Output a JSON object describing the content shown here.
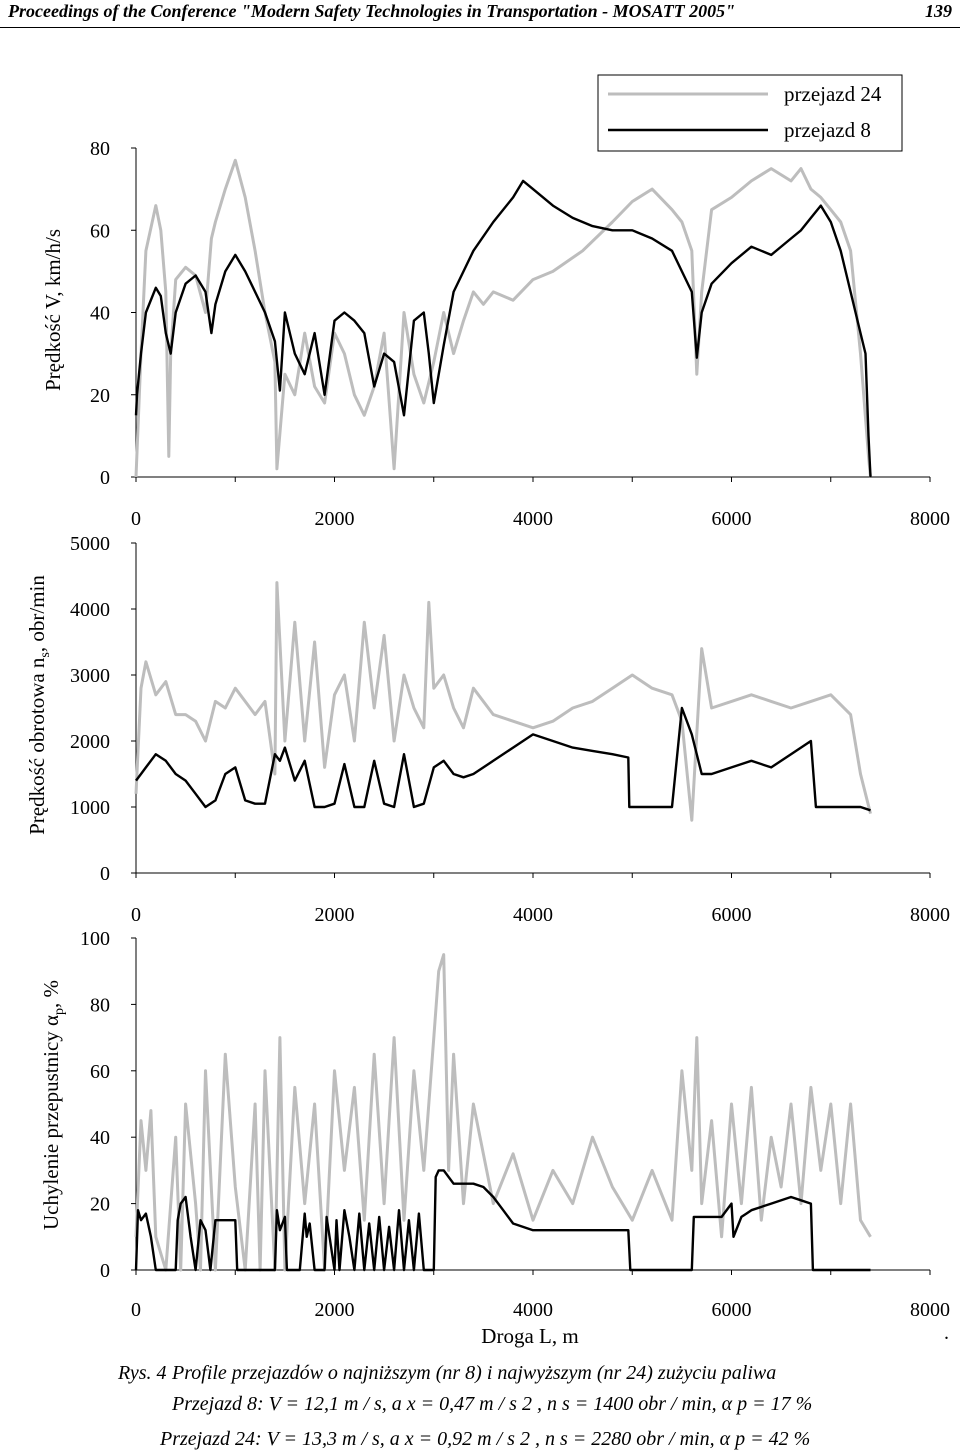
{
  "header": {
    "title": "Proceedings of the Conference \"Modern Safety Technologies in Transportation - MOSATT 2005\"",
    "page_number": "139"
  },
  "chart_data": [
    {
      "type": "line",
      "ylabel": "Prędkość V, km/h/s",
      "xlim": [
        0,
        8000
      ],
      "ylim": [
        0,
        80
      ],
      "xticks": [
        "0",
        "2000",
        "4000",
        "6000",
        "8000"
      ],
      "yticks": [
        "0",
        "20",
        "40",
        "60",
        "80"
      ],
      "legend": {
        "placement": "top-right",
        "entries": [
          "przejazd 24",
          "przejazd 8"
        ]
      },
      "series": [
        {
          "name": "przejazd 24",
          "color": "#bdbdbd",
          "x": [
            0,
            50,
            100,
            200,
            250,
            300,
            330,
            350,
            400,
            500,
            600,
            700,
            760,
            800,
            900,
            1000,
            1100,
            1200,
            1300,
            1400,
            1420,
            1500,
            1600,
            1700,
            1800,
            1900,
            2000,
            2100,
            2200,
            2300,
            2400,
            2500,
            2600,
            2700,
            2800,
            2900,
            3000,
            3100,
            3200,
            3300,
            3400,
            3500,
            3600,
            3800,
            4000,
            4200,
            4500,
            4800,
            5000,
            5200,
            5400,
            5500,
            5600,
            5650,
            5700,
            5800,
            6000,
            6200,
            6400,
            6600,
            6700,
            6800,
            6900,
            7000,
            7100,
            7200,
            7300,
            7380,
            7400
          ],
          "y": [
            0,
            30,
            55,
            66,
            60,
            45,
            5,
            30,
            48,
            51,
            49,
            40,
            58,
            62,
            70,
            77,
            68,
            55,
            40,
            28,
            2,
            25,
            20,
            35,
            22,
            18,
            35,
            30,
            20,
            15,
            22,
            35,
            2,
            40,
            25,
            18,
            28,
            40,
            30,
            38,
            45,
            42,
            45,
            43,
            48,
            50,
            55,
            62,
            67,
            70,
            65,
            62,
            55,
            25,
            45,
            65,
            68,
            72,
            75,
            72,
            75,
            70,
            68,
            65,
            62,
            55,
            30,
            5,
            0
          ]
        },
        {
          "name": "przejazd 8",
          "color": "#000000",
          "x": [
            0,
            10,
            50,
            100,
            200,
            250,
            300,
            350,
            400,
            500,
            600,
            700,
            760,
            800,
            900,
            1000,
            1100,
            1200,
            1300,
            1400,
            1450,
            1500,
            1600,
            1700,
            1800,
            1900,
            2000,
            2100,
            2200,
            2300,
            2400,
            2500,
            2600,
            2700,
            2800,
            2900,
            2950,
            3000,
            3100,
            3200,
            3400,
            3600,
            3800,
            3900,
            4000,
            4200,
            4400,
            4600,
            4800,
            5000,
            5200,
            5400,
            5500,
            5600,
            5650,
            5700,
            5800,
            6000,
            6200,
            6400,
            6600,
            6700,
            6800,
            6900,
            7000,
            7100,
            7200,
            7300,
            7350,
            7380,
            7400
          ],
          "y": [
            15,
            20,
            30,
            40,
            46,
            44,
            35,
            30,
            40,
            47,
            49,
            45,
            35,
            42,
            50,
            54,
            50,
            45,
            40,
            33,
            21,
            40,
            30,
            25,
            35,
            20,
            38,
            40,
            38,
            35,
            22,
            30,
            28,
            15,
            38,
            40,
            30,
            18,
            32,
            45,
            55,
            62,
            68,
            72,
            70,
            66,
            63,
            61,
            60,
            60,
            58,
            55,
            50,
            45,
            29,
            40,
            47,
            52,
            56,
            54,
            58,
            60,
            63,
            66,
            62,
            55,
            45,
            35,
            30,
            10,
            0
          ]
        }
      ]
    },
    {
      "type": "line",
      "ylabel": "Prędkość obrotowa n",
      "ylabel_sub": "s",
      "ylabel_tail": ", obr/min",
      "xlim": [
        0,
        8000
      ],
      "ylim": [
        0,
        5000
      ],
      "xticks": [
        "0",
        "2000",
        "4000",
        "6000",
        "8000"
      ],
      "yticks": [
        "0",
        "1000",
        "2000",
        "3000",
        "4000",
        "5000"
      ],
      "series": [
        {
          "name": "przejazd 24",
          "color": "#bdbdbd",
          "x": [
            0,
            50,
            100,
            200,
            300,
            400,
            500,
            600,
            700,
            800,
            900,
            1000,
            1100,
            1200,
            1300,
            1400,
            1420,
            1500,
            1600,
            1700,
            1800,
            1900,
            2000,
            2100,
            2200,
            2300,
            2400,
            2500,
            2600,
            2700,
            2800,
            2900,
            2950,
            3000,
            3100,
            3200,
            3300,
            3400,
            3600,
            3800,
            4000,
            4200,
            4400,
            4600,
            4800,
            5000,
            5200,
            5400,
            5500,
            5600,
            5700,
            5800,
            6000,
            6200,
            6400,
            6600,
            6800,
            7000,
            7200,
            7300,
            7400
          ],
          "y": [
            1200,
            2800,
            3200,
            2700,
            2900,
            2400,
            2400,
            2300,
            2000,
            2600,
            2500,
            2800,
            2600,
            2400,
            2600,
            1500,
            4400,
            2000,
            3800,
            2000,
            3500,
            1600,
            2700,
            3000,
            2000,
            3800,
            2500,
            3600,
            2000,
            3000,
            2500,
            2200,
            4100,
            2800,
            3000,
            2500,
            2200,
            2800,
            2400,
            2300,
            2200,
            2300,
            2500,
            2600,
            2800,
            3000,
            2800,
            2700,
            2300,
            800,
            3400,
            2500,
            2600,
            2700,
            2600,
            2500,
            2600,
            2700,
            2400,
            1500,
            900
          ]
        },
        {
          "name": "przejazd 8",
          "color": "#000000",
          "x": [
            0,
            50,
            100,
            200,
            300,
            400,
            500,
            600,
            700,
            800,
            900,
            1000,
            1100,
            1200,
            1300,
            1400,
            1450,
            1500,
            1600,
            1700,
            1800,
            1900,
            2000,
            2100,
            2200,
            2300,
            2400,
            2500,
            2600,
            2700,
            2800,
            2900,
            3000,
            3100,
            3200,
            3300,
            3400,
            3600,
            3800,
            4000,
            4200,
            4400,
            4600,
            4800,
            4960,
            4970,
            5000,
            5200,
            5400,
            5500,
            5600,
            5700,
            5800,
            6000,
            6200,
            6400,
            6600,
            6800,
            6850,
            6860,
            7000,
            7200,
            7300,
            7400
          ],
          "y": [
            1400,
            1500,
            1600,
            1800,
            1700,
            1500,
            1400,
            1200,
            1000,
            1100,
            1500,
            1600,
            1100,
            1050,
            1050,
            1800,
            1700,
            1900,
            1400,
            1700,
            1000,
            1000,
            1050,
            1650,
            1000,
            1000,
            1700,
            1050,
            1000,
            1800,
            1000,
            1050,
            1600,
            1700,
            1500,
            1450,
            1500,
            1700,
            1900,
            2100,
            2000,
            1900,
            1850,
            1800,
            1750,
            1000,
            1000,
            1000,
            1000,
            2500,
            2100,
            1500,
            1500,
            1600,
            1700,
            1600,
            1800,
            2000,
            1000,
            1000,
            1000,
            1000,
            1000,
            950
          ]
        }
      ]
    },
    {
      "type": "line",
      "ylabel": "Uchylenie przepustnicy α",
      "ylabel_sub": "p",
      "ylabel_tail": ", %",
      "xlabel": "Droga L, m",
      "xlim": [
        0,
        8000
      ],
      "ylim": [
        0,
        100
      ],
      "xticks": [
        "0",
        "2000",
        "4000",
        "6000",
        "8000"
      ],
      "yticks": [
        "0",
        "20",
        "40",
        "60",
        "80",
        "100"
      ],
      "series": [
        {
          "name": "przejazd 24",
          "color": "#bdbdbd",
          "x": [
            0,
            50,
            100,
            150,
            200,
            300,
            400,
            450,
            500,
            600,
            650,
            700,
            800,
            900,
            1000,
            1100,
            1200,
            1250,
            1300,
            1400,
            1450,
            1500,
            1600,
            1700,
            1800,
            1900,
            2000,
            2100,
            2200,
            2300,
            2400,
            2500,
            2600,
            2700,
            2800,
            2900,
            3000,
            3050,
            3100,
            3150,
            3200,
            3300,
            3400,
            3600,
            3800,
            4000,
            4200,
            4400,
            4600,
            4800,
            5000,
            5200,
            5400,
            5500,
            5600,
            5650,
            5700,
            5800,
            5900,
            6000,
            6100,
            6200,
            6300,
            6400,
            6500,
            6600,
            6700,
            6800,
            6900,
            7000,
            7100,
            7200,
            7300,
            7400
          ],
          "y": [
            10,
            45,
            30,
            48,
            10,
            0,
            40,
            0,
            50,
            20,
            0,
            60,
            0,
            65,
            25,
            0,
            50,
            0,
            60,
            0,
            70,
            0,
            55,
            20,
            50,
            0,
            60,
            30,
            55,
            15,
            65,
            20,
            70,
            15,
            60,
            30,
            70,
            90,
            95,
            30,
            65,
            20,
            50,
            20,
            35,
            15,
            30,
            20,
            40,
            25,
            15,
            30,
            15,
            60,
            30,
            70,
            20,
            45,
            10,
            50,
            20,
            55,
            15,
            40,
            25,
            50,
            20,
            55,
            30,
            50,
            20,
            50,
            15,
            10
          ]
        },
        {
          "name": "przejazd 8",
          "color": "#000000",
          "x": [
            0,
            20,
            50,
            100,
            150,
            200,
            250,
            300,
            400,
            420,
            450,
            500,
            550,
            600,
            650,
            700,
            750,
            800,
            820,
            1000,
            1020,
            1400,
            1420,
            1450,
            1500,
            1520,
            1650,
            1700,
            1720,
            1750,
            1800,
            1900,
            1920,
            2000,
            2020,
            2050,
            2100,
            2150,
            2200,
            2250,
            2300,
            2350,
            2400,
            2450,
            2500,
            2550,
            2600,
            2650,
            2700,
            2750,
            2800,
            2850,
            2900,
            3000,
            3020,
            3050,
            3100,
            3200,
            3400,
            3500,
            3600,
            3700,
            3800,
            4000,
            4200,
            4400,
            4600,
            4800,
            4960,
            4980,
            5000,
            5600,
            5620,
            5650,
            5700,
            5800,
            5900,
            6000,
            6020,
            6100,
            6150,
            6200,
            6400,
            6600,
            6700,
            6800,
            6820,
            7000,
            7400
          ],
          "y": [
            0,
            18,
            15,
            17,
            10,
            0,
            0,
            0,
            0,
            15,
            20,
            22,
            10,
            0,
            15,
            12,
            0,
            15,
            15,
            15,
            0,
            0,
            18,
            12,
            16,
            0,
            0,
            17,
            10,
            14,
            0,
            0,
            16,
            0,
            15,
            0,
            18,
            10,
            0,
            17,
            0,
            14,
            0,
            16,
            0,
            13,
            0,
            18,
            0,
            15,
            0,
            17,
            0,
            0,
            28,
            30,
            30,
            26,
            26,
            25,
            22,
            18,
            14,
            12,
            12,
            12,
            12,
            12,
            12,
            0,
            0,
            0,
            16,
            16,
            16,
            16,
            16,
            20,
            10,
            16,
            17,
            18,
            20,
            22,
            21,
            20,
            0,
            0,
            0
          ]
        }
      ]
    }
  ],
  "end_dot": ".",
  "caption": {
    "label": "Rys. 4",
    "text": "Profile przejazdów o najniższym (nr 8) i najwyższym (nr 24) zużyciu paliwa",
    "line1": "Przejazd 8: V = 12,1 m / s, a x = 0,47 m / s 2 , n s = 1400 obr / min, α p = 17 %",
    "line2": "Przejazd 24: V = 13,3 m / s, a x = 0,92 m / s 2 , n s = 2280 obr / min, α p = 42 %"
  }
}
